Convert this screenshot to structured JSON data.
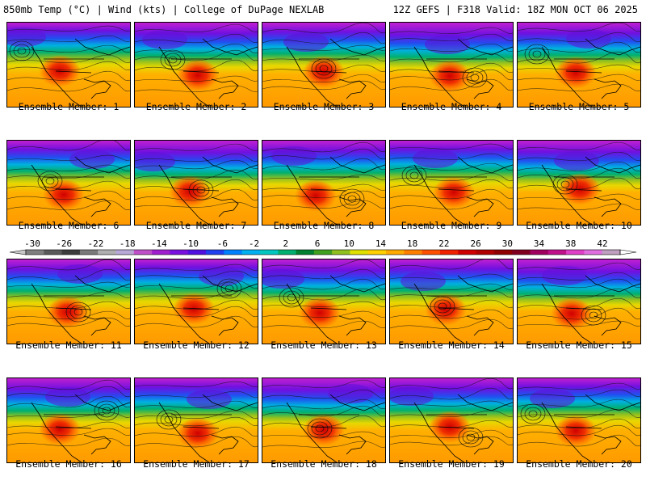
{
  "header": {
    "left": "850mb Temp (°C) | Wind (kts) | College of DuPage NEXLAB",
    "right": "12Z GEFS | F318 Valid: 18Z MON OCT 06 2025"
  },
  "member_label_prefix": "Ensemble Member: ",
  "members": [
    {
      "label": "Ensemble Member: 1"
    },
    {
      "label": "Ensemble Member: 2"
    },
    {
      "label": "Ensemble Member: 3"
    },
    {
      "label": "Ensemble Member: 4"
    },
    {
      "label": "Ensemble Member: 5"
    },
    {
      "label": "Ensemble Member: 6"
    },
    {
      "label": "Ensemble Member: 7"
    },
    {
      "label": "Ensemble Member: 8"
    },
    {
      "label": "Ensemble Member: 9"
    },
    {
      "label": "Ensemble Member: 10"
    },
    {
      "label": "Ensemble Member: 11"
    },
    {
      "label": "Ensemble Member: 12"
    },
    {
      "label": "Ensemble Member: 13"
    },
    {
      "label": "Ensemble Member: 14"
    },
    {
      "label": "Ensemble Member: 15"
    },
    {
      "label": "Ensemble Member: 16"
    },
    {
      "label": "Ensemble Member: 17"
    },
    {
      "label": "Ensemble Member: 18"
    },
    {
      "label": "Ensemble Member: 19"
    },
    {
      "label": "Ensemble Member: 20"
    }
  ],
  "colorbar": {
    "ticks": [
      "-30",
      "-26",
      "-22",
      "-18",
      "-14",
      "-10",
      "-6",
      "-2",
      "2",
      "6",
      "10",
      "14",
      "18",
      "22",
      "26",
      "30",
      "34",
      "38",
      "42"
    ],
    "colors": [
      "#808080",
      "#5a5a5a",
      "#3c3c3c",
      "#7a7a7a",
      "#b0b0b0",
      "#b8a8d8",
      "#c050c8",
      "#a020d0",
      "#7a10e0",
      "#5010e0",
      "#2040f0",
      "#0080ff",
      "#00b0f0",
      "#00c8c0",
      "#00b070",
      "#008030",
      "#40a020",
      "#90c020",
      "#e0e000",
      "#ffd000",
      "#ffaa00",
      "#ff8000",
      "#ff5000",
      "#f02000",
      "#d00000",
      "#b00000",
      "#900000",
      "#800020",
      "#a00060",
      "#c0108c",
      "#e040c8",
      "#e070e0",
      "#c0a0c0"
    ]
  }
}
